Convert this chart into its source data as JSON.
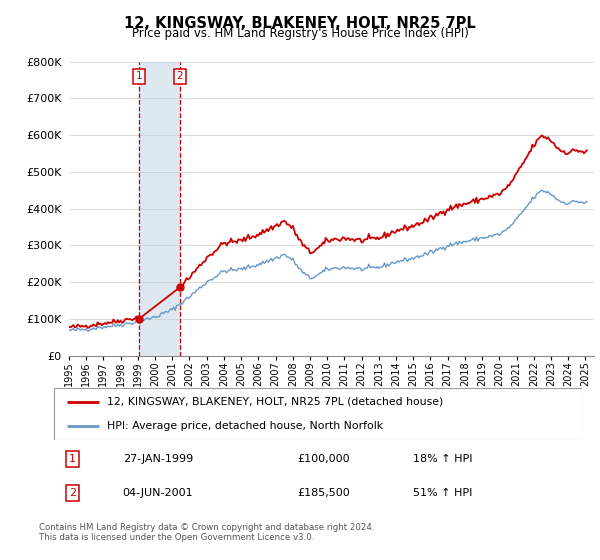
{
  "title": "12, KINGSWAY, BLAKENEY, HOLT, NR25 7PL",
  "subtitle": "Price paid vs. HM Land Registry's House Price Index (HPI)",
  "legend_line1": "12, KINGSWAY, BLAKENEY, HOLT, NR25 7PL (detached house)",
  "legend_line2": "HPI: Average price, detached house, North Norfolk",
  "transaction1_date": "27-JAN-1999",
  "transaction1_price": "£100,000",
  "transaction1_hpi": "18% ↑ HPI",
  "transaction2_date": "04-JUN-2001",
  "transaction2_price": "£185,500",
  "transaction2_hpi": "51% ↑ HPI",
  "footnote1": "Contains HM Land Registry data © Crown copyright and database right 2024.",
  "footnote2": "This data is licensed under the Open Government Licence v3.0.",
  "property_color": "#cc0000",
  "hpi_color": "#6699cc",
  "highlight_color": "#dde8f0",
  "ylim": [
    0,
    800000
  ],
  "yticks": [
    0,
    100000,
    200000,
    300000,
    400000,
    500000,
    600000,
    700000,
    800000
  ],
  "ytick_labels": [
    "£0",
    "£100K",
    "£200K",
    "£300K",
    "£400K",
    "£500K",
    "£600K",
    "£700K",
    "£800K"
  ],
  "transaction1_x": 1999.07,
  "transaction1_y": 100000,
  "transaction2_x": 2001.43,
  "transaction2_y": 185500,
  "xmin": 1995.0,
  "xmax": 2025.5
}
